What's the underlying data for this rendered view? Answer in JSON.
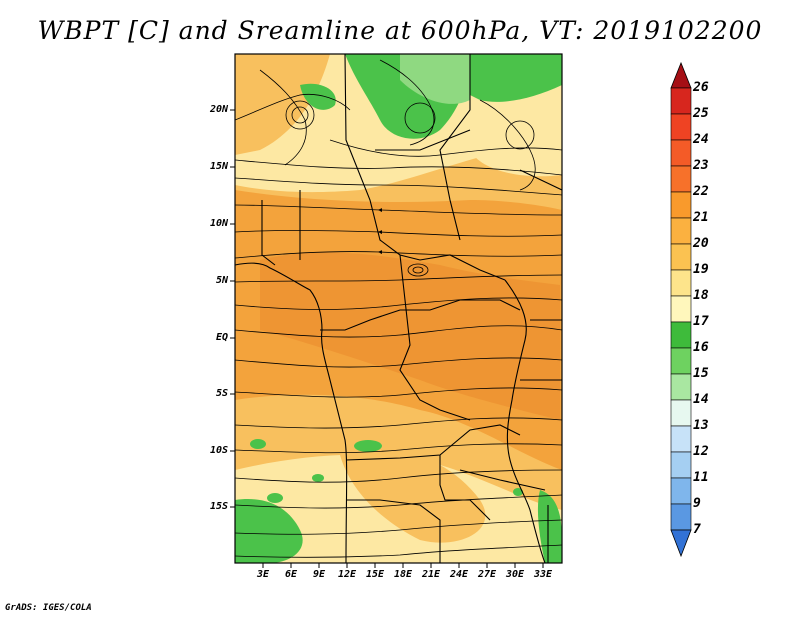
{
  "title": "WBPT [C] and Sreamline at 600hPa, VT: 2019102200",
  "credit": "GrADS: IGES/COLA",
  "lat_labels": [
    "20N",
    "15N",
    "10N",
    "5N",
    "EQ",
    "5S",
    "10S",
    "15S"
  ],
  "lon_labels": [
    "3E",
    "6E",
    "9E",
    "12E",
    "15E",
    "18E",
    "21E",
    "24E",
    "27E",
    "30E",
    "33E"
  ],
  "colorbar": {
    "labels": [
      "26",
      "25",
      "24",
      "23",
      "22",
      "21",
      "20",
      "19",
      "18",
      "17",
      "16",
      "15",
      "14",
      "13",
      "12",
      "11",
      "9",
      "7"
    ],
    "colors": [
      "#a50f15",
      "#d7261e",
      "#ef4323",
      "#f7712a",
      "#f99a2c",
      "#fbc251",
      "#fde48b",
      "#fff7bc",
      "#3ebb3b",
      "#6ed260",
      "#a9e7a1",
      "#e7f8f0",
      "#c7e2f8",
      "#a5cff2",
      "#7fb6ec",
      "#5a98e2",
      "#3272d6",
      "#1a56c8"
    ]
  },
  "colors": {
    "warm_orange": "#f3a33c",
    "light_orange": "#f8c05e",
    "pale_yellow": "#fde8a3",
    "green": "#4bc24a",
    "light_green": "#8fd981"
  }
}
